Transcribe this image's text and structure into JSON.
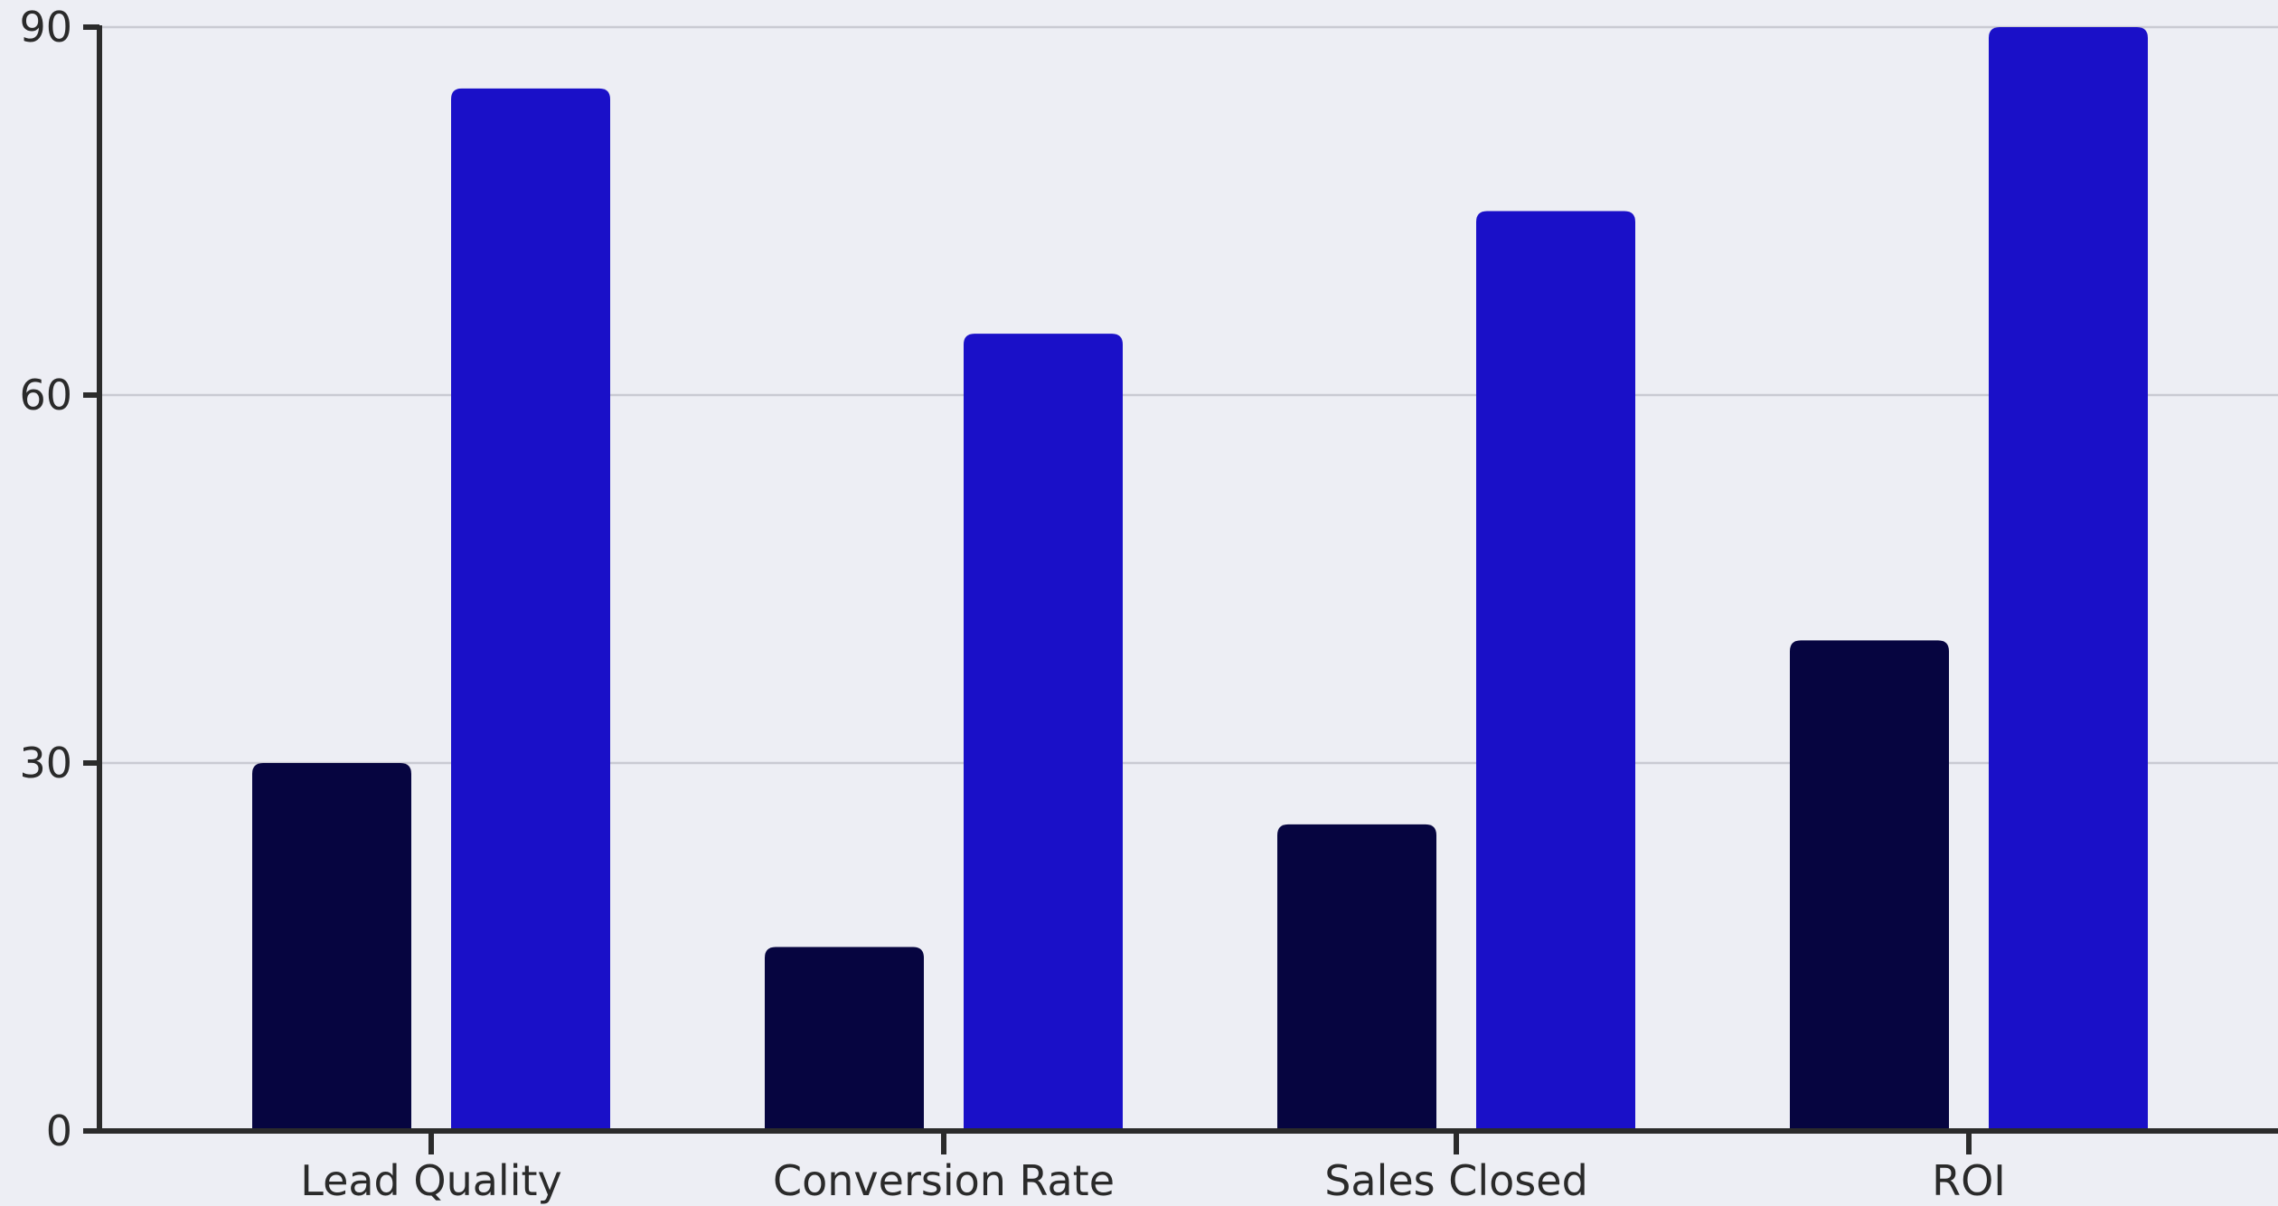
{
  "chart_data": {
    "type": "bar",
    "categories": [
      "Lead Quality",
      "Conversion Rate",
      "Sales Closed",
      "ROI"
    ],
    "series": [
      {
        "values": [
          30,
          15,
          25,
          40
        ],
        "color": "#060540"
      },
      {
        "values": [
          85,
          65,
          75,
          90
        ],
        "color": "#1a10c8"
      }
    ],
    "title": "",
    "xlabel": "",
    "ylabel": "",
    "ylim": [
      0,
      90
    ],
    "yticks": [
      "0",
      "30",
      "60",
      "90"
    ],
    "grid": "horizontal",
    "legend": "none"
  }
}
